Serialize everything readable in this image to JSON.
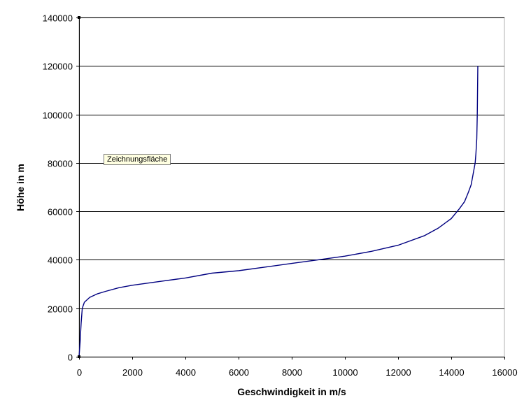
{
  "chart_data": {
    "type": "line",
    "xlabel": "Geschwindigkeit in m/s",
    "ylabel": "Höhe in m",
    "xlim": [
      0,
      16000
    ],
    "ylim": [
      0,
      140000
    ],
    "x_ticks": [
      "0",
      "2000",
      "4000",
      "6000",
      "8000",
      "10000",
      "12000",
      "14000",
      "16000"
    ],
    "y_ticks": [
      "0",
      "20000",
      "40000",
      "60000",
      "80000",
      "100000",
      "120000",
      "140000"
    ],
    "grid": "horizontal",
    "legend": "none",
    "series": [
      {
        "color": "#000080",
        "x": [
          0,
          40,
          80,
          120,
          200,
          400,
          700,
          1000,
          1500,
          2000,
          3000,
          4000,
          5000,
          6000,
          7000,
          8000,
          9000,
          10000,
          11000,
          12000,
          13000,
          13500,
          14000,
          14300,
          14500,
          14650,
          14750,
          14800,
          14850,
          14900,
          14930,
          14960,
          14980,
          15000
        ],
        "y": [
          0,
          6000,
          14000,
          20000,
          22500,
          24500,
          26000,
          27000,
          28500,
          29500,
          31000,
          32500,
          34500,
          35500,
          37000,
          38500,
          40000,
          41500,
          43500,
          46000,
          50000,
          53000,
          57000,
          61000,
          64000,
          68000,
          71000,
          74000,
          77000,
          80000,
          84000,
          90000,
          100000,
          120000
        ]
      }
    ]
  },
  "tooltip": {
    "label": "Zeichnungsfläche"
  }
}
